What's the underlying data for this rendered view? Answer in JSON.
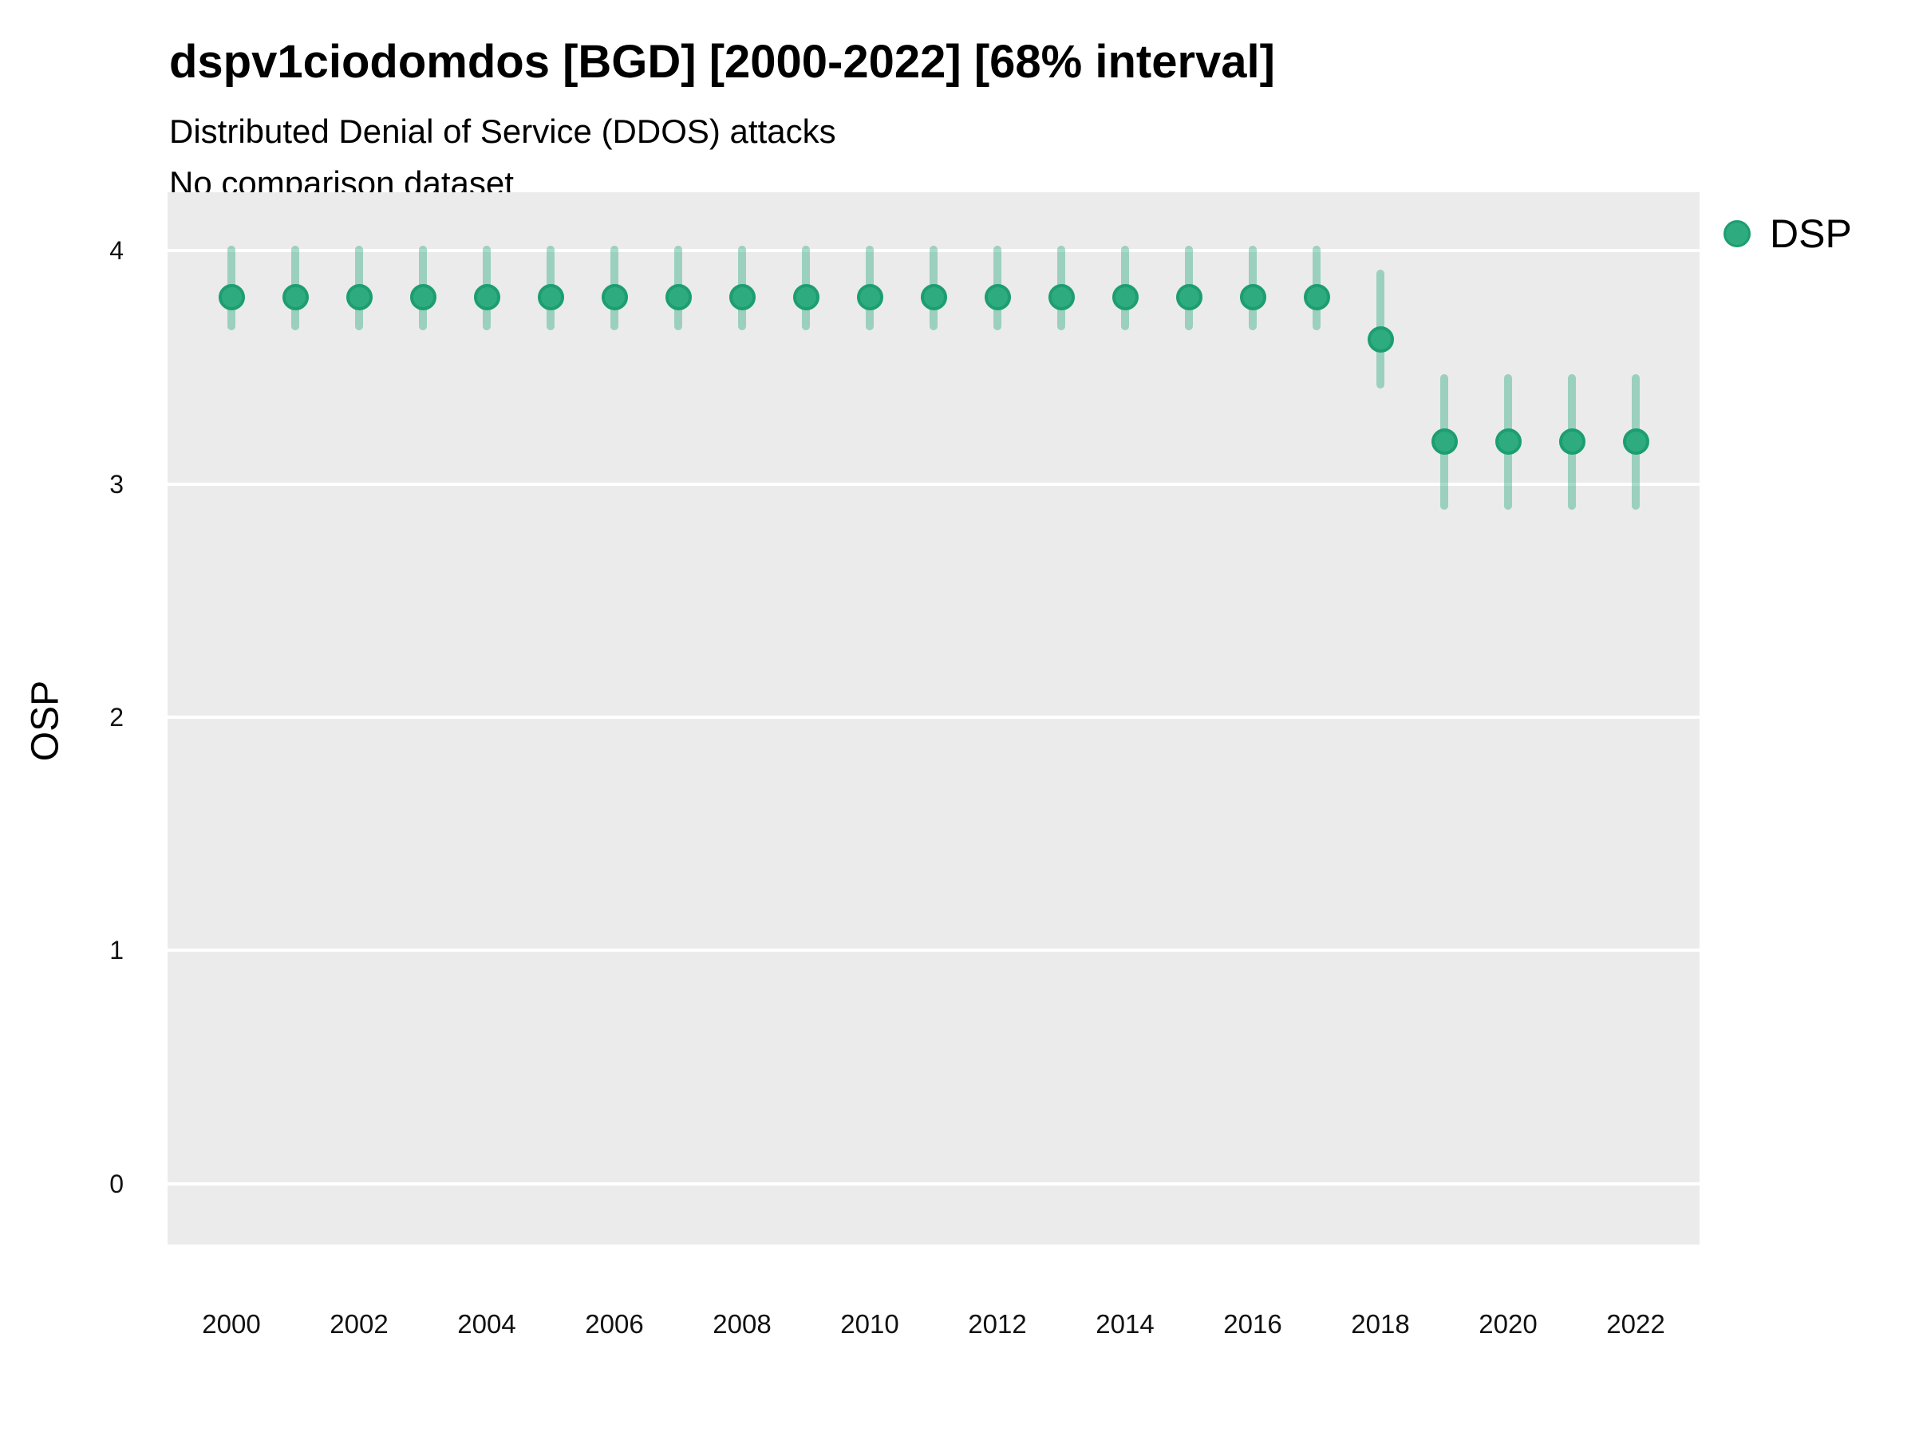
{
  "title": "dspv1ciodomdos [BGD] [2000-2022] [68% interval]",
  "subtitle": "Distributed Denial of Service (DDOS) attacks",
  "comparison_note": "No comparison dataset",
  "y_axis_title": "OSP",
  "legend": {
    "label": "DSP"
  },
  "colors": {
    "plot_background": "#ebebeb",
    "gridline": "#ffffff",
    "point_fill": "#2eac80",
    "point_stroke": "#1c9e70",
    "interval_bar": "rgba(46, 172, 128, 0.42)",
    "text": "#000000",
    "tick_text": "#111111"
  },
  "chart_data": {
    "type": "scatter",
    "title": "dspv1ciodomdos [BGD] [2000-2022] [68% interval]",
    "subtitle": "Distributed Denial of Service (DDOS) attacks",
    "note": "No comparison dataset",
    "xlabel": "",
    "ylabel": "OSP",
    "interval_label": "68% interval",
    "grid": "horizontal-major-only",
    "legend_position": "right-top",
    "xlim": [
      1999,
      2023
    ],
    "ylim": [
      -0.26,
      4.25
    ],
    "yticks": [
      0,
      1,
      2,
      3,
      4
    ],
    "xticks": [
      2000,
      2002,
      2004,
      2006,
      2008,
      2010,
      2012,
      2014,
      2016,
      2018,
      2020,
      2022
    ],
    "x": [
      2000,
      2001,
      2002,
      2003,
      2004,
      2005,
      2006,
      2007,
      2008,
      2009,
      2010,
      2011,
      2012,
      2013,
      2014,
      2015,
      2016,
      2017,
      2018,
      2019,
      2020,
      2021,
      2022
    ],
    "series": [
      {
        "name": "DSP",
        "values": [
          3.8,
          3.8,
          3.8,
          3.8,
          3.8,
          3.8,
          3.8,
          3.8,
          3.8,
          3.8,
          3.8,
          3.8,
          3.8,
          3.8,
          3.8,
          3.8,
          3.8,
          3.8,
          3.62,
          3.18,
          3.18,
          3.18,
          3.18
        ],
        "lo": [
          3.66,
          3.66,
          3.66,
          3.66,
          3.66,
          3.66,
          3.66,
          3.66,
          3.66,
          3.66,
          3.66,
          3.66,
          3.66,
          3.66,
          3.66,
          3.66,
          3.66,
          3.66,
          3.41,
          2.89,
          2.89,
          2.89,
          2.89
        ],
        "hi": [
          4.02,
          4.02,
          4.02,
          4.02,
          4.02,
          4.02,
          4.02,
          4.02,
          4.02,
          4.02,
          4.02,
          4.02,
          4.02,
          4.02,
          4.02,
          4.02,
          4.02,
          4.02,
          3.92,
          3.47,
          3.47,
          3.47,
          3.47
        ]
      }
    ]
  }
}
